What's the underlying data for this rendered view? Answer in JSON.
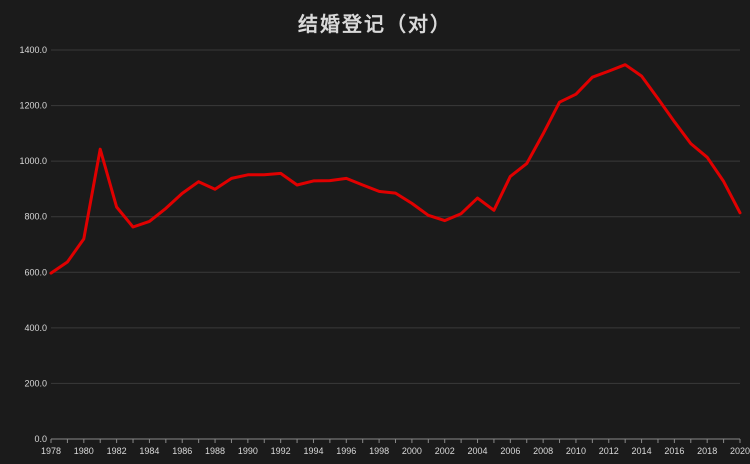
{
  "chart_data": {
    "type": "line",
    "title": "结婚登记（对）",
    "xlabel": "",
    "ylabel": "",
    "ylim": [
      0,
      1400
    ],
    "y_ticks": [
      "0.0",
      "200.0",
      "400.0",
      "600.0",
      "800.0",
      "1000.0",
      "1200.0",
      "1400.0"
    ],
    "x_tick_labels": [
      "1978",
      "1980",
      "1982",
      "1984",
      "1986",
      "1988",
      "1990",
      "1992",
      "1994",
      "1996",
      "1998",
      "2000",
      "2002",
      "2004",
      "2006",
      "2008",
      "2010",
      "2012",
      "2014",
      "2016",
      "2018",
      "2020"
    ],
    "grid": "horizontal",
    "legend": "none",
    "series": [
      {
        "color": "#e00000",
        "x": [
          1978,
          1979,
          1980,
          1981,
          1982,
          1983,
          1984,
          1985,
          1986,
          1987,
          1988,
          1989,
          1990,
          1991,
          1992,
          1993,
          1994,
          1995,
          1996,
          1997,
          1998,
          1999,
          2000,
          2001,
          2002,
          2003,
          2004,
          2005,
          2006,
          2007,
          2008,
          2009,
          2010,
          2011,
          2012,
          2013,
          2014,
          2015,
          2016,
          2017,
          2018,
          2019,
          2020
        ],
        "values": [
          597,
          637,
          720,
          1043,
          835,
          763,
          783,
          830,
          884,
          926,
          899,
          938,
          951,
          951,
          956,
          914,
          929,
          930,
          938,
          914,
          891,
          885,
          848,
          805,
          786,
          811,
          867,
          823,
          945,
          991,
          1098,
          1212,
          1241,
          1302,
          1324,
          1347,
          1306,
          1225,
          1142,
          1063,
          1014,
          927,
          814
        ]
      }
    ]
  }
}
